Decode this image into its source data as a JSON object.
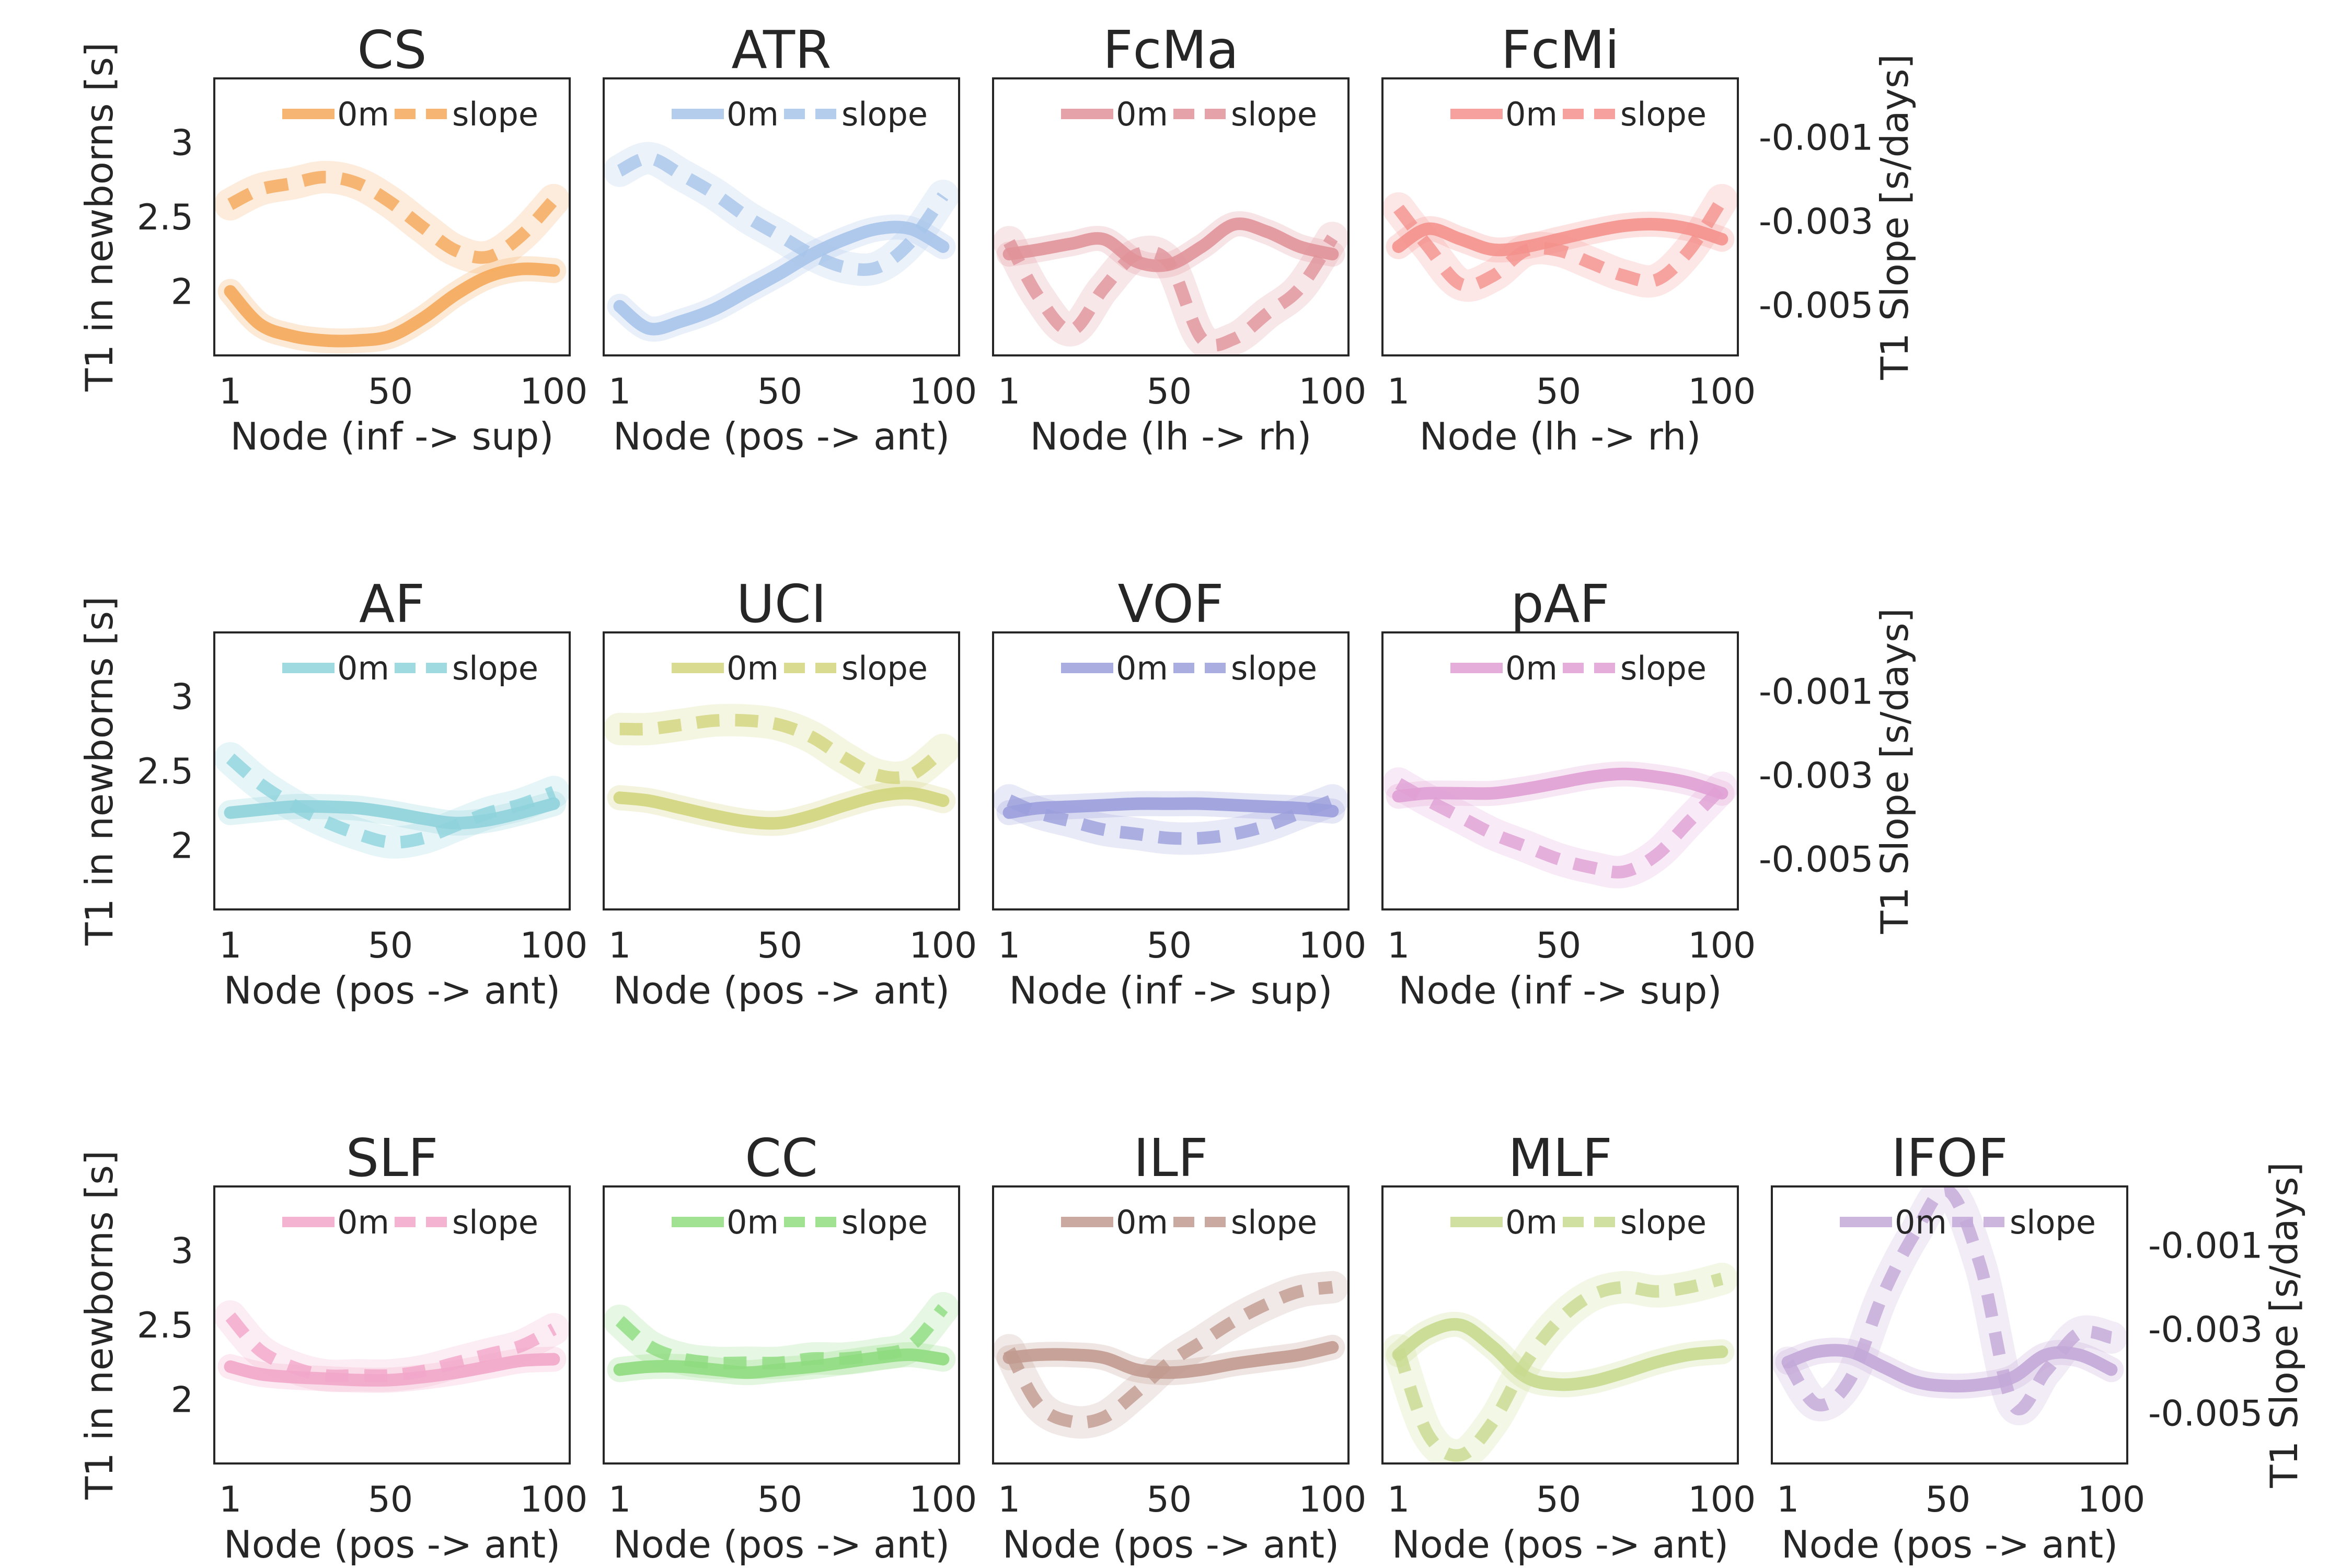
{
  "figure": {
    "left_ylabel": "T1 in newborns [s]",
    "right_ylabel": "T1 Slope [s/days]",
    "y_ticks": [
      "3",
      "2.5",
      "2"
    ],
    "y_tick_values": [
      3,
      2.5,
      2
    ],
    "right_ticks": [
      "-0.001",
      "-0.003",
      "-0.005"
    ],
    "right_tick_values": [
      -0.001,
      -0.003,
      -0.005
    ],
    "x_ticks": [
      "1",
      "50",
      "100"
    ],
    "x_tick_values": [
      1,
      50,
      100
    ],
    "legend": [
      "0m",
      "slope"
    ]
  },
  "chart_data": [
    {
      "type": "line",
      "title": "CS",
      "xlabel": "Node (inf -> sup)",
      "color": "#f5a85a",
      "x": [
        1,
        10,
        20,
        30,
        40,
        50,
        60,
        70,
        80,
        90,
        100
      ],
      "series": [
        {
          "name": "0m",
          "values": [
            2.0,
            1.78,
            1.7,
            1.67,
            1.67,
            1.7,
            1.82,
            1.98,
            2.1,
            2.15,
            2.14
          ]
        },
        {
          "name": "slope",
          "values": [
            -0.0026,
            -0.00225,
            -0.0021,
            -0.00195,
            -0.0021,
            -0.00255,
            -0.00315,
            -0.0037,
            -0.00385,
            -0.00335,
            -0.0025
          ]
        }
      ]
    },
    {
      "type": "line",
      "title": "ATR",
      "xlabel": "Node (pos -> ant)",
      "color": "#a7c4ea",
      "x": [
        1,
        10,
        20,
        30,
        40,
        50,
        60,
        70,
        80,
        90,
        100
      ],
      "series": [
        {
          "name": "0m",
          "values": [
            1.9,
            1.75,
            1.8,
            1.88,
            2.0,
            2.12,
            2.25,
            2.35,
            2.42,
            2.42,
            2.3
          ]
        },
        {
          "name": "slope",
          "values": [
            -0.0018,
            -0.0015,
            -0.0019,
            -0.00235,
            -0.0029,
            -0.00335,
            -0.0038,
            -0.0041,
            -0.0041,
            -0.0035,
            -0.0024
          ]
        }
      ]
    },
    {
      "type": "line",
      "title": "FcMa",
      "xlabel": "Node (lh -> rh)",
      "color": "#e0939a",
      "x": [
        1,
        10,
        20,
        30,
        40,
        50,
        60,
        70,
        80,
        90,
        100
      ],
      "series": [
        {
          "name": "0m",
          "values": [
            2.25,
            2.28,
            2.32,
            2.35,
            2.2,
            2.18,
            2.3,
            2.45,
            2.4,
            2.3,
            2.25
          ]
        },
        {
          "name": "slope",
          "values": [
            -0.0035,
            -0.0048,
            -0.0056,
            -0.0046,
            -0.0038,
            -0.004,
            -0.0058,
            -0.0058,
            -0.0052,
            -0.0046,
            -0.0034
          ]
        }
      ]
    },
    {
      "type": "line",
      "title": "FcMi",
      "xlabel": "Node (lh -> rh)",
      "color": "#f4918c",
      "x": [
        1,
        10,
        20,
        30,
        40,
        50,
        60,
        70,
        80,
        90,
        100
      ],
      "series": [
        {
          "name": "0m",
          "values": [
            2.3,
            2.42,
            2.35,
            2.28,
            2.3,
            2.35,
            2.4,
            2.44,
            2.45,
            2.42,
            2.35
          ]
        },
        {
          "name": "slope",
          "values": [
            -0.0027,
            -0.0036,
            -0.0045,
            -0.0043,
            -0.0037,
            -0.0037,
            -0.004,
            -0.0043,
            -0.0044,
            -0.0037,
            -0.0025
          ]
        }
      ]
    },
    {
      "type": "line",
      "title": "AF",
      "xlabel": "Node (pos -> ant)",
      "color": "#8fd3dc",
      "x": [
        1,
        10,
        20,
        30,
        40,
        50,
        60,
        70,
        80,
        90,
        100
      ],
      "series": [
        {
          "name": "0m",
          "values": [
            2.22,
            2.24,
            2.26,
            2.26,
            2.25,
            2.22,
            2.18,
            2.15,
            2.17,
            2.22,
            2.28
          ]
        },
        {
          "name": "slope",
          "values": [
            -0.0026,
            -0.0032,
            -0.0037,
            -0.0041,
            -0.0044,
            -0.0046,
            -0.0045,
            -0.0042,
            -0.0039,
            -0.0037,
            -0.0034
          ]
        }
      ]
    },
    {
      "type": "line",
      "title": "UCI",
      "xlabel": "Node (pos -> ant)",
      "color": "#d2d57c",
      "x": [
        1,
        10,
        20,
        30,
        40,
        50,
        60,
        70,
        80,
        90,
        100
      ],
      "series": [
        {
          "name": "0m",
          "values": [
            2.32,
            2.3,
            2.25,
            2.2,
            2.16,
            2.15,
            2.2,
            2.27,
            2.33,
            2.35,
            2.3
          ]
        },
        {
          "name": "slope",
          "values": [
            -0.0019,
            -0.0019,
            -0.0018,
            -0.0017,
            -0.0017,
            -0.0018,
            -0.0021,
            -0.0026,
            -0.003,
            -0.003,
            -0.0024
          ]
        }
      ]
    },
    {
      "type": "line",
      "title": "VOF",
      "xlabel": "Node (inf -> sup)",
      "color": "#9b9fdb",
      "x": [
        1,
        10,
        20,
        30,
        40,
        50,
        60,
        70,
        80,
        90,
        100
      ],
      "series": [
        {
          "name": "0m",
          "values": [
            2.22,
            2.25,
            2.26,
            2.27,
            2.28,
            2.28,
            2.28,
            2.27,
            2.26,
            2.25,
            2.23
          ]
        },
        {
          "name": "slope",
          "values": [
            -0.0036,
            -0.0039,
            -0.0041,
            -0.0043,
            -0.0044,
            -0.0045,
            -0.0045,
            -0.0044,
            -0.0042,
            -0.0039,
            -0.0036
          ]
        }
      ]
    },
    {
      "type": "line",
      "title": "pAF",
      "xlabel": "Node (inf -> sup)",
      "color": "#e0a0d4",
      "x": [
        1,
        10,
        20,
        30,
        40,
        50,
        60,
        70,
        80,
        90,
        100
      ],
      "series": [
        {
          "name": "0m",
          "values": [
            2.33,
            2.35,
            2.35,
            2.35,
            2.38,
            2.42,
            2.46,
            2.48,
            2.46,
            2.42,
            2.35
          ]
        },
        {
          "name": "slope",
          "values": [
            -0.0032,
            -0.0036,
            -0.004,
            -0.0044,
            -0.0047,
            -0.005,
            -0.0052,
            -0.0053,
            -0.0049,
            -0.0041,
            -0.0033
          ]
        }
      ]
    },
    {
      "type": "line",
      "title": "SLF",
      "xlabel": "Node (pos -> ant)",
      "color": "#f2a7c9",
      "x": [
        1,
        10,
        20,
        30,
        40,
        50,
        60,
        70,
        80,
        90,
        100
      ],
      "series": [
        {
          "name": "0m",
          "values": [
            2.22,
            2.17,
            2.15,
            2.14,
            2.13,
            2.13,
            2.15,
            2.18,
            2.22,
            2.26,
            2.27
          ]
        },
        {
          "name": "slope",
          "values": [
            -0.0027,
            -0.0035,
            -0.0039,
            -0.0041,
            -0.0041,
            -0.0041,
            -0.004,
            -0.0038,
            -0.0036,
            -0.0034,
            -0.003
          ]
        }
      ]
    },
    {
      "type": "line",
      "title": "CC",
      "xlabel": "Node (pos -> ant)",
      "color": "#8fdc7f",
      "x": [
        1,
        10,
        20,
        30,
        40,
        50,
        60,
        70,
        80,
        90,
        100
      ],
      "series": [
        {
          "name": "0m",
          "values": [
            2.2,
            2.22,
            2.22,
            2.2,
            2.18,
            2.2,
            2.22,
            2.25,
            2.28,
            2.3,
            2.27
          ]
        },
        {
          "name": "slope",
          "values": [
            -0.0028,
            -0.0034,
            -0.0037,
            -0.0038,
            -0.0038,
            -0.0038,
            -0.0037,
            -0.0037,
            -0.0036,
            -0.0034,
            -0.0025
          ]
        }
      ]
    },
    {
      "type": "line",
      "title": "ILF",
      "xlabel": "Node (pos -> ant)",
      "color": "#c19a90",
      "x": [
        1,
        10,
        20,
        30,
        40,
        50,
        60,
        70,
        80,
        90,
        100
      ],
      "series": [
        {
          "name": "0m",
          "values": [
            2.28,
            2.3,
            2.3,
            2.28,
            2.2,
            2.18,
            2.2,
            2.24,
            2.27,
            2.3,
            2.35
          ]
        },
        {
          "name": "slope",
          "values": [
            -0.0035,
            -0.0048,
            -0.0052,
            -0.0051,
            -0.0045,
            -0.0038,
            -0.0033,
            -0.0028,
            -0.0024,
            -0.0021,
            -0.002
          ]
        }
      ]
    },
    {
      "type": "line",
      "title": "MLF",
      "xlabel": "Node (pos -> ant)",
      "color": "#c8da8f",
      "x": [
        1,
        10,
        20,
        30,
        40,
        50,
        60,
        70,
        80,
        90,
        100
      ],
      "series": [
        {
          "name": "0m",
          "values": [
            2.3,
            2.45,
            2.5,
            2.35,
            2.15,
            2.1,
            2.12,
            2.18,
            2.25,
            2.3,
            2.32
          ]
        },
        {
          "name": "slope",
          "values": [
            -0.0035,
            -0.0055,
            -0.006,
            -0.0052,
            -0.0038,
            -0.0028,
            -0.0022,
            -0.002,
            -0.0021,
            -0.002,
            -0.0018
          ]
        }
      ]
    },
    {
      "type": "line",
      "title": "IFOF",
      "xlabel": "Node (pos -> ant)",
      "color": "#c3a9d8",
      "x": [
        1,
        10,
        20,
        30,
        40,
        50,
        60,
        70,
        80,
        90,
        100
      ],
      "series": [
        {
          "name": "0m",
          "values": [
            2.25,
            2.32,
            2.32,
            2.22,
            2.12,
            2.09,
            2.1,
            2.15,
            2.3,
            2.3,
            2.2
          ]
        },
        {
          "name": "slope",
          "values": [
            -0.0038,
            -0.0048,
            -0.0042,
            -0.0022,
            -0.0007,
            0.0003,
            -0.0015,
            -0.0048,
            -0.004,
            -0.0031,
            -0.0032
          ]
        }
      ]
    }
  ]
}
